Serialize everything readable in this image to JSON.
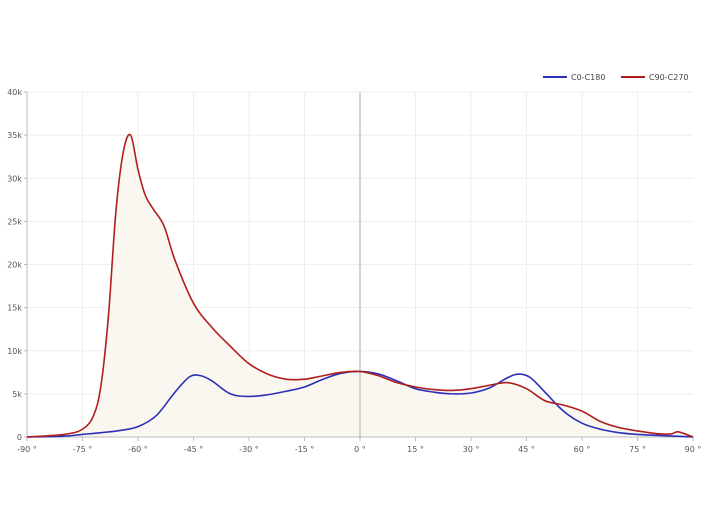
{
  "chart_data": {
    "type": "area",
    "title": "",
    "xlabel": "",
    "ylabel": "",
    "xlim": [
      -90,
      90
    ],
    "ylim": [
      0,
      40000
    ],
    "grid": true,
    "legend_position": "top-right",
    "x_ticks": [
      "-90 °",
      "-75 °",
      "-60 °",
      "-45 °",
      "-30 °",
      "-15 °",
      "0 °",
      "15 °",
      "30 °",
      "45 °",
      "60 °",
      "75 °",
      "90 °"
    ],
    "y_ticks": [
      "0",
      "5k",
      "10k",
      "15k",
      "20k",
      "25k",
      "30k",
      "35k",
      "40k"
    ],
    "colors": {
      "C0-C180": "#2b2fb8",
      "C90-C270": "#b01e1e",
      "fill": "#faf7f0",
      "axis": "#bbbbbb",
      "grid": "#eeeeee"
    },
    "series": [
      {
        "name": "C0-C180",
        "x": [
          -90,
          -80,
          -75,
          -70,
          -65,
          -60,
          -55,
          -50,
          -46,
          -43,
          -40,
          -35,
          -30,
          -25,
          -20,
          -15,
          -10,
          -5,
          0,
          5,
          10,
          15,
          20,
          25,
          30,
          35,
          40,
          43,
          46,
          50,
          55,
          60,
          65,
          70,
          75,
          80,
          85,
          90
        ],
        "y": [
          0,
          100,
          300,
          500,
          750,
          1200,
          2500,
          5200,
          7000,
          7100,
          6500,
          5000,
          4700,
          4900,
          5300,
          5800,
          6700,
          7400,
          7600,
          7300,
          6500,
          5600,
          5200,
          5000,
          5100,
          5700,
          6900,
          7300,
          6900,
          5200,
          3000,
          1600,
          900,
          500,
          300,
          200,
          100,
          0
        ]
      },
      {
        "name": "C90-C270",
        "x": [
          -90,
          -80,
          -75,
          -72,
          -70,
          -68,
          -66,
          -64,
          -62,
          -60,
          -58,
          -56,
          -53,
          -50,
          -45,
          -40,
          -35,
          -30,
          -25,
          -20,
          -15,
          -10,
          -5,
          0,
          5,
          10,
          15,
          20,
          25,
          30,
          35,
          40,
          45,
          50,
          55,
          60,
          65,
          70,
          75,
          80,
          84,
          86,
          90
        ],
        "y": [
          0,
          300,
          900,
          2500,
          6000,
          14000,
          26000,
          33000,
          35000,
          31000,
          28000,
          26500,
          24500,
          20500,
          15500,
          12700,
          10500,
          8500,
          7300,
          6700,
          6700,
          7100,
          7500,
          7600,
          7100,
          6300,
          5800,
          5500,
          5400,
          5600,
          6000,
          6300,
          5600,
          4200,
          3700,
          3000,
          1800,
          1100,
          700,
          400,
          350,
          600,
          0
        ]
      }
    ]
  }
}
